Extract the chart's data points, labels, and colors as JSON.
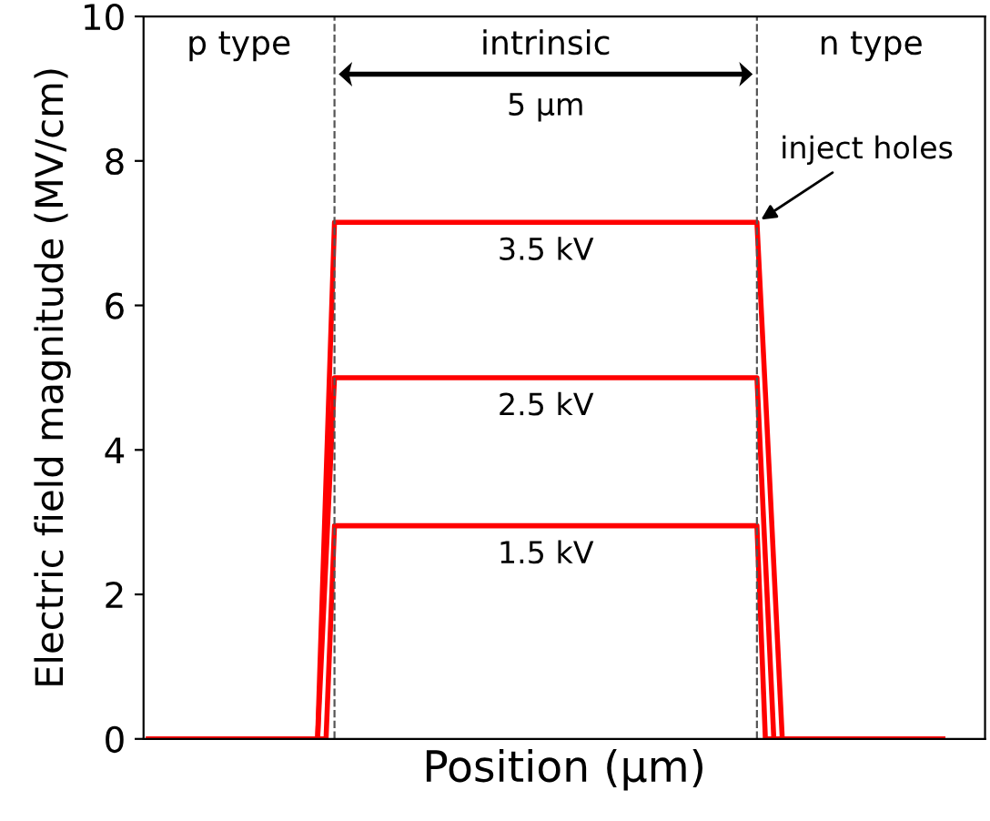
{
  "chart_data": {
    "type": "line",
    "xlabel": "Position (μm)",
    "ylabel": "Electric field magnitude (MV/cm)",
    "categories": [
      null,
      null,
      null,
      null,
      null,
      null,
      null,
      null,
      null,
      null,
      null,
      null,
      null,
      null,
      null,
      null,
      null,
      null,
      null,
      null,
      null,
      null,
      null,
      null,
      null,
      null,
      null,
      null,
      null,
      null,
      null,
      null,
      null,
      null,
      null,
      null,
      null,
      null,
      null,
      null,
      null,
      null,
      null,
      null,
      null,
      null,
      null,
      null,
      null,
      null,
      null,
      null,
      null,
      null,
      null,
      null,
      null,
      null,
      null,
      null,
      null,
      null,
      null,
      null,
      null,
      null,
      null,
      null,
      null,
      null,
      null,
      null,
      null,
      null,
      null,
      null,
      null,
      null,
      null,
      null,
      null,
      null,
      null,
      null,
      null,
      null,
      null,
      null,
      null,
      null,
      null,
      null,
      null,
      null,
      null
    ],
    "ylim": [
      0,
      10
    ],
    "yticks": [
      0,
      2,
      4,
      6,
      8,
      10
    ],
    "tick_labels": "y",
    "grid": false,
    "series": [
      {
        "name": "3.5 kV",
        "color": "#ff0000",
        "values": [
          0,
          0,
          0,
          0,
          0,
          0,
          0,
          0,
          0,
          0,
          0,
          0,
          0,
          0,
          0,
          0,
          0,
          0,
          0,
          0,
          0,
          3.6,
          7.15,
          7.15,
          7.15,
          7.15,
          7.15,
          7.15,
          7.15,
          7.15,
          7.15,
          7.15,
          7.15,
          7.15,
          7.15,
          7.15,
          7.15,
          7.15,
          7.15,
          7.15,
          7.15,
          7.15,
          7.15,
          7.15,
          7.15,
          7.15,
          7.15,
          7.15,
          7.15,
          7.15,
          7.15,
          7.15,
          7.15,
          7.15,
          7.15,
          7.15,
          7.15,
          7.15,
          7.15,
          7.15,
          7.15,
          7.15,
          7.15,
          7.15,
          7.15,
          7.15,
          7.15,
          7.15,
          7.15,
          7.15,
          7.15,
          7.15,
          7.15,
          4.8,
          2.4,
          0,
          0,
          0,
          0,
          0,
          0,
          0,
          0,
          0,
          0,
          0,
          0,
          0,
          0,
          0,
          0,
          0,
          0,
          0,
          0
        ]
      },
      {
        "name": "2.5 kV",
        "color": "#ff0000",
        "values": [
          0,
          0,
          0,
          0,
          0,
          0,
          0,
          0,
          0,
          0,
          0,
          0,
          0,
          0,
          0,
          0,
          0,
          0,
          0,
          0,
          0,
          2.5,
          5.0,
          5.0,
          5.0,
          5.0,
          5.0,
          5.0,
          5.0,
          5.0,
          5.0,
          5.0,
          5.0,
          5.0,
          5.0,
          5.0,
          5.0,
          5.0,
          5.0,
          5.0,
          5.0,
          5.0,
          5.0,
          5.0,
          5.0,
          5.0,
          5.0,
          5.0,
          5.0,
          5.0,
          5.0,
          5.0,
          5.0,
          5.0,
          5.0,
          5.0,
          5.0,
          5.0,
          5.0,
          5.0,
          5.0,
          5.0,
          5.0,
          5.0,
          5.0,
          5.0,
          5.0,
          5.0,
          5.0,
          5.0,
          5.0,
          5.0,
          5.0,
          2.5,
          0,
          0,
          0,
          0,
          0,
          0,
          0,
          0,
          0,
          0,
          0,
          0,
          0,
          0,
          0,
          0,
          0,
          0,
          0,
          0,
          0
        ]
      },
      {
        "name": "1.5 kV",
        "color": "#ff0000",
        "values": [
          0,
          0,
          0,
          0,
          0,
          0,
          0,
          0,
          0,
          0,
          0,
          0,
          0,
          0,
          0,
          0,
          0,
          0,
          0,
          0,
          0,
          0,
          2.95,
          2.95,
          2.95,
          2.95,
          2.95,
          2.95,
          2.95,
          2.95,
          2.95,
          2.95,
          2.95,
          2.95,
          2.95,
          2.95,
          2.95,
          2.95,
          2.95,
          2.95,
          2.95,
          2.95,
          2.95,
          2.95,
          2.95,
          2.95,
          2.95,
          2.95,
          2.95,
          2.95,
          2.95,
          2.95,
          2.95,
          2.95,
          2.95,
          2.95,
          2.95,
          2.95,
          2.95,
          2.95,
          2.95,
          2.95,
          2.95,
          2.95,
          2.95,
          2.95,
          2.95,
          2.95,
          2.95,
          2.95,
          2.95,
          2.95,
          2.95,
          0,
          0,
          0,
          0,
          0,
          0,
          0,
          0,
          0,
          0,
          0,
          0,
          0,
          0,
          0,
          0,
          0,
          0,
          0,
          0,
          0,
          0
        ]
      }
    ],
    "annotations": [
      "p type",
      "intrinsic",
      "n type",
      "5 μm",
      "inject holes"
    ]
  }
}
